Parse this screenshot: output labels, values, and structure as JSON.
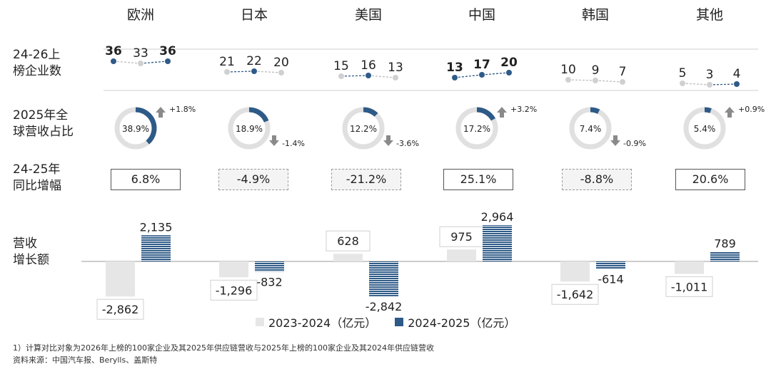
{
  "regions": [
    "欧洲",
    "日本",
    "美国",
    "中国",
    "韩国",
    "其他"
  ],
  "row_labels": {
    "count": "24-26上\n榜企业数",
    "share": "2025年全\n球营收占比",
    "growth": "24-25年\n同比增幅",
    "revenue": "营收\n增长额"
  },
  "chart_data": [
    {
      "type": "line",
      "name": "24-26上榜企业数",
      "series": [
        {
          "region": "欧洲",
          "values": [
            36,
            33,
            36
          ],
          "bold": [
            true,
            false,
            true
          ]
        },
        {
          "region": "日本",
          "values": [
            21,
            22,
            20
          ],
          "bold": [
            false,
            false,
            false
          ]
        },
        {
          "region": "美国",
          "values": [
            15,
            16,
            13
          ],
          "bold": [
            false,
            false,
            false
          ]
        },
        {
          "region": "中国",
          "values": [
            13,
            17,
            20
          ],
          "bold": [
            true,
            true,
            true
          ]
        },
        {
          "region": "韩国",
          "values": [
            10,
            9,
            7
          ],
          "bold": [
            false,
            false,
            false
          ]
        },
        {
          "region": "其他",
          "values": [
            5,
            3,
            4
          ],
          "bold": [
            false,
            false,
            false
          ]
        }
      ]
    },
    {
      "type": "pie",
      "name": "2025年全球营收占比",
      "slices": [
        {
          "region": "欧洲",
          "share": 38.9,
          "label": "38.9%",
          "change": "+1.8%",
          "direction": "up"
        },
        {
          "region": "日本",
          "share": 18.9,
          "label": "18.9%",
          "change": "-1.4%",
          "direction": "down"
        },
        {
          "region": "美国",
          "share": 12.2,
          "label": "12.2%",
          "change": "-3.6%",
          "direction": "down"
        },
        {
          "region": "中国",
          "share": 17.2,
          "label": "17.2%",
          "change": "+3.2%",
          "direction": "up"
        },
        {
          "region": "韩国",
          "share": 7.4,
          "label": "7.4%",
          "change": "-0.9%",
          "direction": "down"
        },
        {
          "region": "其他",
          "share": 5.4,
          "label": "5.4%",
          "change": "+0.9%",
          "direction": "up"
        }
      ]
    },
    {
      "type": "table",
      "name": "24-25年同比增幅",
      "values": [
        "6.8%",
        "-4.9%",
        "-21.2%",
        "25.1%",
        "-8.8%",
        "20.6%"
      ]
    },
    {
      "type": "bar",
      "name": "营收增长额",
      "categories": [
        "欧洲",
        "日本",
        "美国",
        "中国",
        "韩国",
        "其他"
      ],
      "series": [
        {
          "name": "2023-2024（亿元）",
          "values": [
            -2862,
            -1296,
            628,
            975,
            -1642,
            -1011
          ],
          "labels": [
            "-2,862",
            "-1,296",
            "628",
            "975",
            "-1,642",
            "-1,011"
          ]
        },
        {
          "name": "2024-2025（亿元）",
          "values": [
            2135,
            -832,
            -2842,
            2964,
            -614,
            789
          ],
          "labels": [
            "2,135",
            "-832",
            "-2,842",
            "2,964",
            "-614",
            "789"
          ]
        }
      ]
    }
  ],
  "colors": {
    "accent": "#2e5a87",
    "gray_bar": "#e6e6e6",
    "gray_dot": "#d0d0d0",
    "ring_gray": "#e0e0e0",
    "arrow": "#8a8a8a"
  },
  "legend": {
    "item1": "2023-2024（亿元）",
    "item2": "2024-2025（亿元）"
  },
  "footnotes": {
    "note": "1）计算对比对象为2026年上榜的100家企业及其2025年供应链营收与2025年上榜的100家企业及其2024年供应链营收",
    "source": "资料来源：中国汽车报、Berylls、盖斯特"
  }
}
